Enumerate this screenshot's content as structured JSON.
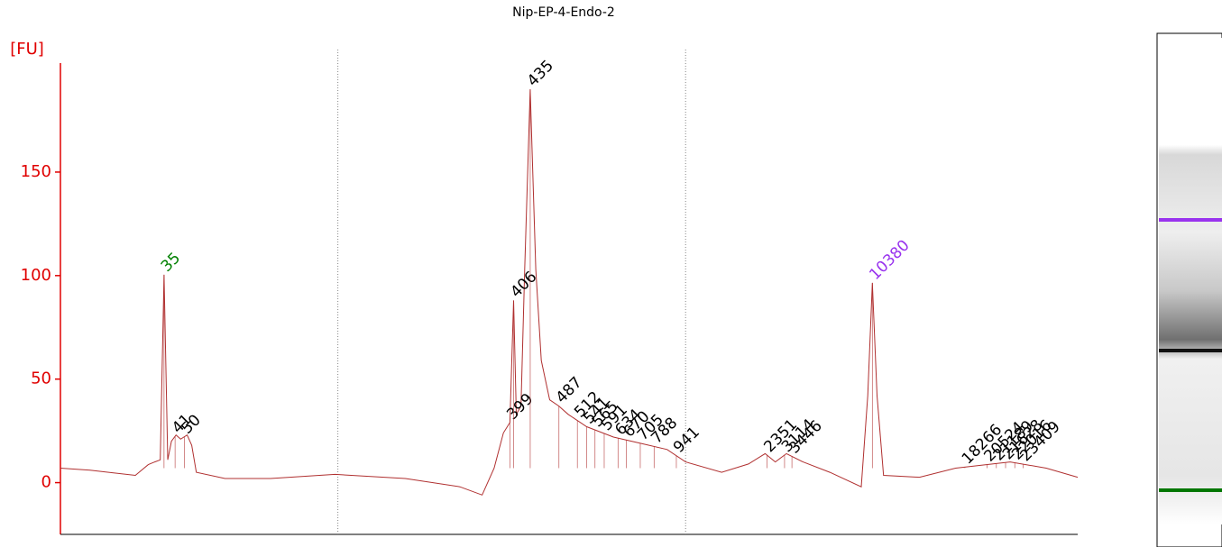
{
  "chart_data": {
    "type": "line",
    "title": "Nip-EP-4-Endo-2",
    "y_label": "[FU]",
    "xlim": [
      20,
      130
    ],
    "ylim": [
      -25,
      207
    ],
    "yticks": [
      0,
      50,
      100,
      150
    ],
    "axis_color": "#e00000",
    "trace_color": "#b03030",
    "region_lines": [
      50.0,
      87.6
    ],
    "x": [
      20.0,
      23.2,
      28.1,
      29.5,
      30.2,
      30.8,
      31.2,
      31.6,
      32.0,
      32.5,
      33.0,
      33.7,
      34.2,
      34.7,
      37.8,
      42.7,
      49.7,
      57.3,
      63.2,
      65.6,
      66.9,
      67.9,
      68.6,
      69.0,
      69.3,
      69.8,
      70.2,
      70.8,
      71.4,
      72.0,
      72.9,
      73.9,
      74.9,
      76.9,
      79.8,
      82.7,
      85.6,
      87.6,
      91.5,
      94.4,
      96.2,
      97.3,
      98.5,
      100.3,
      103.2,
      106.6,
      107.3,
      107.8,
      108.3,
      109.0,
      112.9,
      116.8,
      122.7,
      126.6,
      130.0
    ],
    "values": [
      7,
      6,
      3.5,
      8.7,
      10,
      11,
      100.4,
      11,
      20,
      23,
      21,
      23,
      18,
      5,
      2,
      2,
      4,
      2,
      -2,
      -6,
      7,
      24,
      29,
      88,
      33,
      37,
      103,
      190,
      103,
      59,
      40,
      37,
      33,
      27,
      22,
      19,
      16,
      10,
      5,
      9,
      14,
      10,
      14,
      10,
      5,
      -2,
      42,
      96.5,
      42,
      3.5,
      2.6,
      7,
      10,
      7,
      2.6
    ],
    "peak_color": "#000000",
    "peaks": [
      {
        "size": 35,
        "x": 31.2,
        "color": "#008000"
      },
      {
        "size": 41,
        "x": 32.4
      },
      {
        "size": 50,
        "x": 33.4
      },
      {
        "size": 399,
        "x": 68.6
      },
      {
        "size": 406,
        "x": 69.0
      },
      {
        "size": 435,
        "x": 70.8
      },
      {
        "size": 487,
        "x": 73.9
      },
      {
        "size": 512,
        "x": 75.9
      },
      {
        "size": 541,
        "x": 76.9
      },
      {
        "size": 565,
        "x": 77.8
      },
      {
        "size": 591,
        "x": 78.8
      },
      {
        "size": 634,
        "x": 80.3
      },
      {
        "size": 670,
        "x": 81.2
      },
      {
        "size": 705,
        "x": 82.7
      },
      {
        "size": 788,
        "x": 84.2
      },
      {
        "size": 941,
        "x": 86.6
      },
      {
        "size": 2351,
        "x": 96.4
      },
      {
        "size": 3114,
        "x": 98.3
      },
      {
        "size": 3446,
        "x": 99.1
      },
      {
        "size": 10380,
        "x": 107.8,
        "color": "#9933ee"
      },
      {
        "size": 18266,
        "x": 117.8
      },
      {
        "size": 20524,
        "x": 120.2
      },
      {
        "size": 21189,
        "x": 121.2
      },
      {
        "size": 21628,
        "x": 122.2
      },
      {
        "size": 22016,
        "x": 123.2
      },
      {
        "size": 23409,
        "x": 124.1
      }
    ]
  }
}
